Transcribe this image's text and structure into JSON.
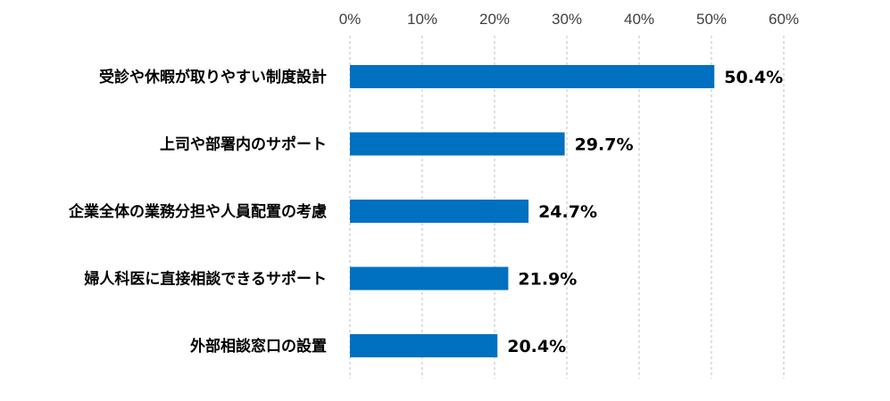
{
  "chart_data": {
    "type": "bar",
    "orientation": "horizontal",
    "title": "",
    "xlabel": "",
    "ylabel": "",
    "xlim": [
      0,
      60
    ],
    "ticks": [
      "0%",
      "10%",
      "20%",
      "30%",
      "40%",
      "50%",
      "60%"
    ],
    "grid": true,
    "categories": [
      "受診や休暇が取りやすい制度設計",
      "上司や部署内のサポート",
      "企業全体の業務分担や人員配置の考慮",
      "婦人科医に直接相談できるサポート",
      "外部相談窓口の設置"
    ],
    "values": [
      50.4,
      29.7,
      24.7,
      21.9,
      20.4
    ],
    "value_labels": [
      "50.4%",
      "29.7%",
      "24.7%",
      "21.9%",
      "20.4%"
    ],
    "bar_color": "#0070c0",
    "grid_color": "#bfbfbf"
  }
}
